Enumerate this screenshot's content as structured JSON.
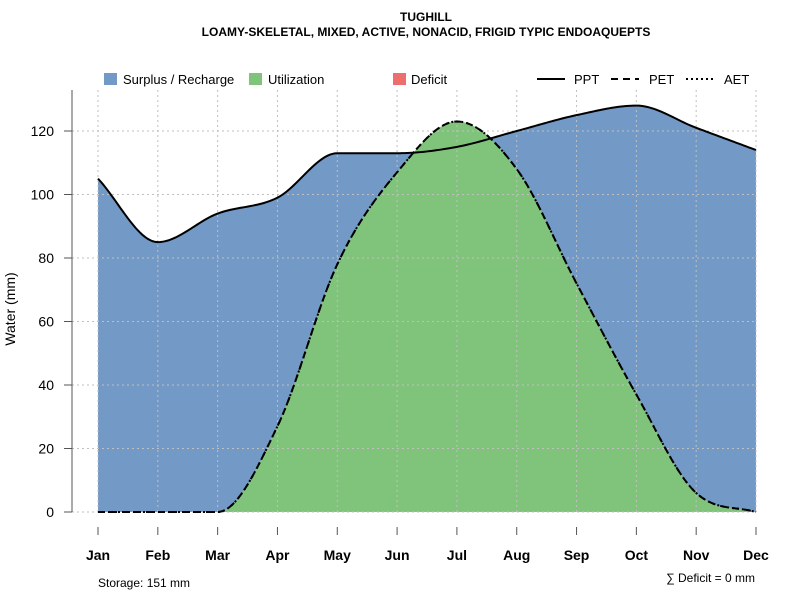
{
  "chart_data": {
    "type": "area",
    "title": "TUGHILL",
    "subtitle": "LOAMY-SKELETAL, MIXED, ACTIVE, NONACID, FRIGID TYPIC ENDOAQUEPTS",
    "xlabel": "",
    "ylabel": "Water (mm)",
    "ylim": [
      0,
      130
    ],
    "yticks": [
      0,
      20,
      40,
      60,
      80,
      100,
      120
    ],
    "categories": [
      "Jan",
      "Feb",
      "Mar",
      "Apr",
      "May",
      "Jun",
      "Jul",
      "Aug",
      "Sep",
      "Oct",
      "Nov",
      "Dec"
    ],
    "grid": true,
    "legend_position": "top",
    "series": [
      {
        "name": "PPT",
        "style": "solid",
        "values": [
          105,
          85,
          94,
          99,
          113,
          113,
          115,
          120,
          125,
          128,
          121,
          114
        ]
      },
      {
        "name": "PET",
        "style": "dashed",
        "values": [
          0,
          0,
          0,
          27,
          78,
          107,
          123,
          108,
          72,
          37,
          6,
          0
        ]
      },
      {
        "name": "AET",
        "style": "dotted",
        "values": [
          0,
          0,
          0,
          27,
          78,
          107,
          123,
          108,
          72,
          37,
          6,
          0
        ]
      }
    ],
    "fills": [
      {
        "name": "Surplus / Recharge",
        "color": "#7399c6"
      },
      {
        "name": "Utilization",
        "color": "#80c47b"
      },
      {
        "name": "Deficit",
        "color": "#ee6e6e"
      }
    ],
    "annotations": {
      "storage": "Storage: 151 mm",
      "deficit": "∑ Deficit = 0 mm"
    }
  }
}
